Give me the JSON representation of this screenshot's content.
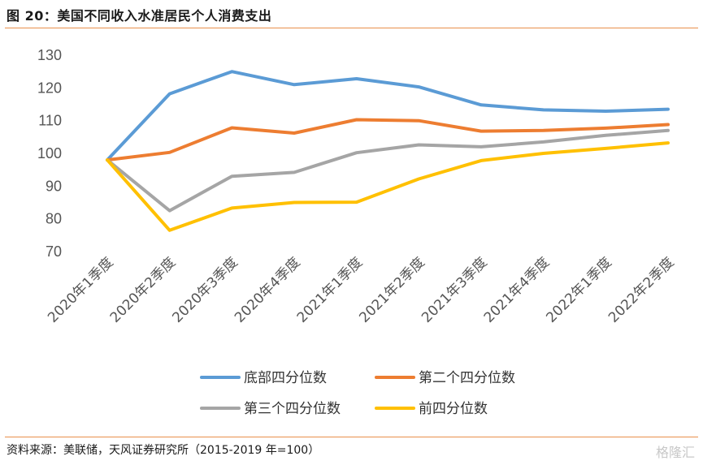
{
  "figure": {
    "title": "图 20：美国不同收入水准居民个人消费支出",
    "source": "资料来源：美联储，天风证券研究所（2015-2019 年=100）",
    "watermark": "格隆汇"
  },
  "chart_data": {
    "type": "line",
    "title": "",
    "xlabel": "",
    "ylabel": "",
    "ylim": [
      70,
      130
    ],
    "yticks": [
      70,
      80,
      90,
      100,
      110,
      120,
      130
    ],
    "grid": false,
    "legend_position": "bottom",
    "categories": [
      "2020年1季度",
      "2020年2季度",
      "2020年3季度",
      "2020年4季度",
      "2021年1季度",
      "2021年2季度",
      "2021年3季度",
      "2021年4季度",
      "2022年1季度",
      "2022年2季度"
    ],
    "series": [
      {
        "name": "底部四分位数",
        "color": "#5b9bd5",
        "values": [
          98,
          118.2,
          125,
          121,
          122.8,
          120.3,
          114.8,
          113.3,
          112.9,
          113.5
        ]
      },
      {
        "name": "第二个四分位数",
        "color": "#ed7d31",
        "values": [
          98,
          100.3,
          107.8,
          106.2,
          110.3,
          110,
          106.8,
          107,
          107.7,
          108.8
        ]
      },
      {
        "name": "第三个四分位数",
        "color": "#a5a5a5",
        "values": [
          98,
          82.5,
          93,
          94.2,
          100.2,
          102.6,
          102,
          103.5,
          105.5,
          107
        ]
      },
      {
        "name": "前四分位数",
        "color": "#ffc000",
        "values": [
          98,
          76.5,
          83.3,
          85,
          85.1,
          92.2,
          97.8,
          100,
          101.5,
          103.2
        ]
      }
    ]
  }
}
